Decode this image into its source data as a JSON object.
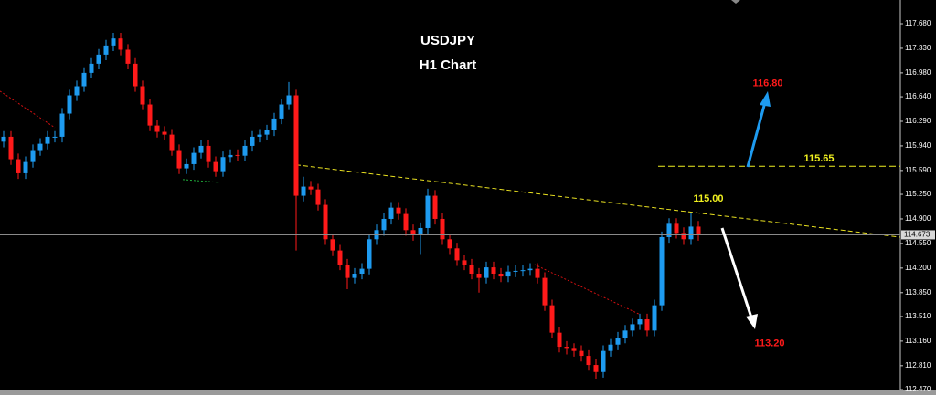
{
  "chart_data": {
    "type": "candlestick",
    "title": "USDJPY",
    "subtitle": "H1 Chart",
    "ylim": [
      112.392,
      118.018
    ],
    "yticks": [
      {
        "value": 117.68,
        "label": "117.680"
      },
      {
        "value": 117.33,
        "label": "117.330"
      },
      {
        "value": 116.98,
        "label": "116.980"
      },
      {
        "value": 116.64,
        "label": "116.640"
      },
      {
        "value": 116.29,
        "label": "116.290"
      },
      {
        "value": 115.94,
        "label": "115.940"
      },
      {
        "value": 115.59,
        "label": "115.590"
      },
      {
        "value": 115.25,
        "label": "115.250"
      },
      {
        "value": 114.9,
        "label": "114.900"
      },
      {
        "value": 114.55,
        "label": "114.550"
      },
      {
        "value": 114.2,
        "label": "114.200"
      },
      {
        "value": 113.85,
        "label": "113.850"
      },
      {
        "value": 113.51,
        "label": "113.510"
      },
      {
        "value": 113.16,
        "label": "113.160"
      },
      {
        "value": 112.81,
        "label": "112.810"
      },
      {
        "value": 112.47,
        "label": "112.470"
      }
    ],
    "up_color": "#1e9bf0",
    "down_color": "#ff1a1a",
    "open": [
      116.0,
      116.07,
      115.75,
      115.55,
      115.71,
      115.88,
      115.97,
      116.07,
      116.07,
      116.4,
      116.66,
      116.79,
      116.98,
      117.11,
      117.24,
      117.37,
      117.47,
      117.31,
      117.11,
      116.79,
      116.53,
      116.23,
      116.14,
      116.1,
      115.88,
      115.62,
      115.68,
      115.84,
      115.94,
      115.71,
      115.58,
      115.78,
      115.81,
      115.8,
      115.94,
      116.07,
      116.1,
      116.16,
      116.33,
      116.53,
      116.66,
      115.23,
      115.36,
      115.32,
      115.1,
      114.61,
      114.45,
      114.25,
      114.06,
      114.12,
      114.19,
      114.61,
      114.74,
      114.9,
      115.06,
      114.97,
      114.74,
      114.67,
      114.77,
      115.23,
      114.9,
      114.61,
      114.48,
      114.31,
      114.25,
      114.12,
      114.06,
      114.21,
      114.12,
      114.08,
      114.15,
      114.16,
      114.17,
      114.19,
      114.06,
      113.67,
      113.28,
      113.08,
      113.05,
      113.02,
      112.95,
      112.82,
      112.72,
      113.02,
      113.11,
      113.21,
      113.31,
      113.4,
      113.47,
      113.31,
      113.67,
      114.64,
      114.83,
      114.7,
      114.61,
      114.79
    ],
    "high": [
      116.15,
      116.15,
      115.83,
      115.79,
      115.96,
      116.05,
      116.15,
      116.15,
      116.48,
      116.74,
      116.87,
      117.06,
      117.19,
      117.32,
      117.45,
      117.55,
      117.55,
      117.39,
      117.19,
      116.87,
      116.61,
      116.31,
      116.22,
      116.18,
      115.96,
      115.76,
      115.92,
      116.02,
      116.02,
      115.79,
      115.86,
      115.89,
      115.89,
      116.02,
      116.15,
      116.18,
      116.24,
      116.41,
      116.61,
      116.85,
      116.74,
      115.5,
      115.44,
      115.4,
      115.18,
      114.69,
      114.53,
      114.33,
      114.2,
      114.27,
      114.69,
      114.82,
      114.98,
      115.14,
      115.14,
      115.05,
      114.82,
      114.85,
      115.33,
      115.31,
      114.98,
      114.69,
      114.56,
      114.39,
      114.33,
      114.2,
      114.29,
      114.29,
      114.2,
      114.23,
      114.24,
      114.25,
      114.27,
      114.27,
      114.14,
      113.75,
      113.36,
      113.16,
      113.13,
      113.1,
      113.03,
      112.9,
      113.1,
      113.19,
      113.29,
      113.39,
      113.48,
      113.55,
      113.55,
      113.75,
      114.72,
      114.91,
      114.91,
      114.78,
      114.99,
      114.87
    ],
    "low": [
      115.92,
      115.67,
      115.47,
      115.47,
      115.63,
      115.8,
      115.89,
      115.99,
      115.99,
      116.32,
      116.58,
      116.71,
      116.9,
      117.03,
      117.16,
      117.29,
      117.23,
      117.03,
      116.71,
      116.45,
      116.15,
      116.06,
      116.02,
      115.8,
      115.54,
      115.54,
      115.6,
      115.76,
      115.63,
      115.5,
      115.5,
      115.7,
      115.72,
      115.72,
      115.86,
      115.99,
      116.02,
      116.08,
      116.25,
      116.45,
      114.45,
      115.15,
      115.24,
      115.02,
      114.53,
      114.37,
      114.17,
      113.9,
      113.98,
      114.04,
      114.11,
      114.53,
      114.66,
      114.82,
      114.89,
      114.66,
      114.59,
      114.4,
      114.69,
      114.82,
      114.53,
      114.4,
      114.23,
      114.17,
      114.04,
      113.85,
      113.98,
      114.04,
      114.0,
      114.0,
      114.07,
      114.08,
      114.09,
      113.98,
      113.59,
      113.2,
      113.0,
      112.97,
      112.94,
      112.87,
      112.74,
      112.62,
      112.64,
      112.94,
      113.03,
      113.13,
      113.23,
      113.32,
      113.23,
      113.23,
      113.59,
      114.56,
      114.62,
      114.53,
      114.53,
      114.59
    ],
    "close": [
      116.07,
      115.75,
      115.55,
      115.71,
      115.88,
      115.97,
      116.07,
      116.07,
      116.4,
      116.66,
      116.79,
      116.98,
      117.11,
      117.24,
      117.37,
      117.47,
      117.31,
      117.11,
      116.79,
      116.53,
      116.23,
      116.14,
      116.1,
      115.88,
      115.62,
      115.68,
      115.84,
      115.94,
      115.71,
      115.58,
      115.78,
      115.81,
      115.8,
      115.94,
      116.07,
      116.1,
      116.16,
      116.33,
      116.53,
      116.66,
      115.23,
      115.36,
      115.32,
      115.1,
      114.61,
      114.45,
      114.25,
      114.06,
      114.12,
      114.19,
      114.61,
      114.74,
      114.9,
      115.06,
      114.97,
      114.74,
      114.67,
      114.77,
      115.23,
      114.9,
      114.61,
      114.48,
      114.31,
      114.25,
      114.12,
      114.06,
      114.21,
      114.12,
      114.08,
      114.15,
      114.16,
      114.17,
      114.19,
      114.06,
      113.67,
      113.28,
      113.08,
      113.05,
      113.02,
      112.95,
      112.82,
      112.72,
      113.02,
      113.11,
      113.21,
      113.31,
      113.4,
      113.47,
      113.31,
      113.67,
      114.64,
      114.83,
      114.7,
      114.61,
      114.79,
      114.67
    ],
    "trendlines": [
      {
        "color": "#e8e020",
        "x": [
          40,
          122.6
        ],
        "y": [
          115.67,
          114.64
        ]
      },
      {
        "color": "#d01010",
        "x": [
          -0.5,
          7
        ],
        "y": [
          116.72,
          116.2
        ]
      },
      {
        "color": "#d01010",
        "x": [
          72.6,
          87
        ],
        "y": [
          114.25,
          113.54
        ]
      },
      {
        "color": "#1faa3a",
        "x": [
          24.5,
          29.5
        ],
        "y": [
          115.46,
          115.42
        ]
      }
    ],
    "current_price": 114.673,
    "annotations": [
      {
        "value": 116.8,
        "label": "116.80",
        "color": "#ff1a1a"
      },
      {
        "value": 115.65,
        "label": "115.65",
        "color": "#f0f020"
      },
      {
        "value": 115,
        "label": "115.00",
        "color": "#f0f020"
      },
      {
        "value": 113.2,
        "label": "113.20",
        "color": "#ff1a1a"
      }
    ]
  }
}
